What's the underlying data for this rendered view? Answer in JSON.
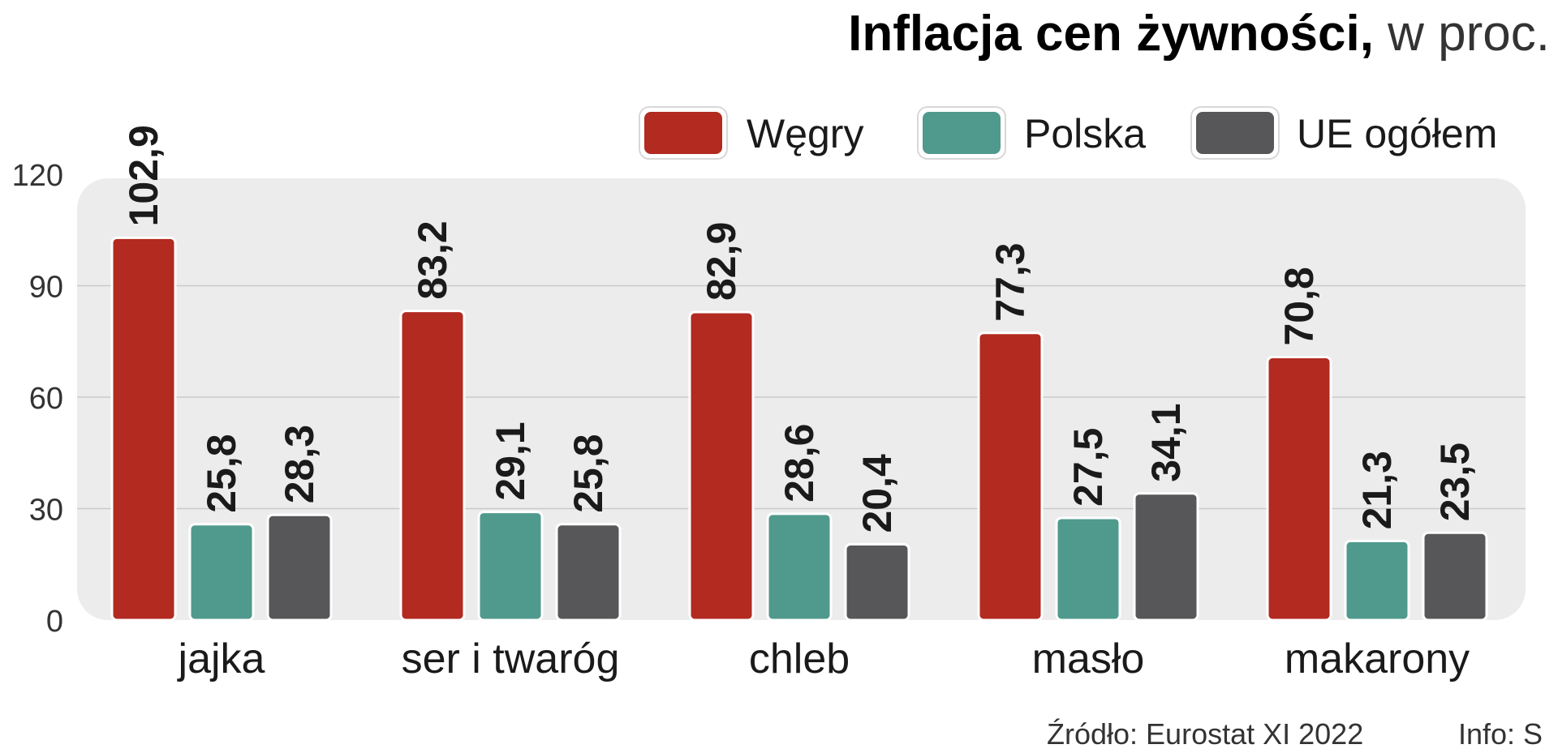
{
  "title": {
    "bold": "Inflacja cen żywności,",
    "light": " w proc."
  },
  "footer": {
    "source": "Źródło: Eurostat XI 2022",
    "info": "Info: S"
  },
  "chart_data": {
    "type": "bar",
    "categories": [
      "jajka",
      "ser i twaróg",
      "chleb",
      "masło",
      "makarony"
    ],
    "series": [
      {
        "name": "Węgry",
        "color": "#b22a20",
        "values": [
          102.9,
          83.2,
          82.9,
          77.3,
          70.8
        ],
        "labels": [
          "102,9",
          "83,2",
          "82,9",
          "77,3",
          "70,8"
        ]
      },
      {
        "name": "Polska",
        "color": "#4f9a8c",
        "values": [
          25.8,
          29.1,
          28.6,
          27.5,
          21.3
        ],
        "labels": [
          "25,8",
          "29,1",
          "28,6",
          "27,5",
          "21,3"
        ]
      },
      {
        "name": "UE ogółem",
        "color": "#575759",
        "values": [
          28.3,
          25.8,
          20.4,
          34.1,
          23.5
        ],
        "labels": [
          "28,3",
          "25,8",
          "20,4",
          "34,1",
          "23,5"
        ]
      }
    ],
    "yticks": [
      0,
      30,
      60,
      90,
      120
    ],
    "ylim": [
      0,
      120
    ],
    "grid": true,
    "legend": "top-right"
  }
}
